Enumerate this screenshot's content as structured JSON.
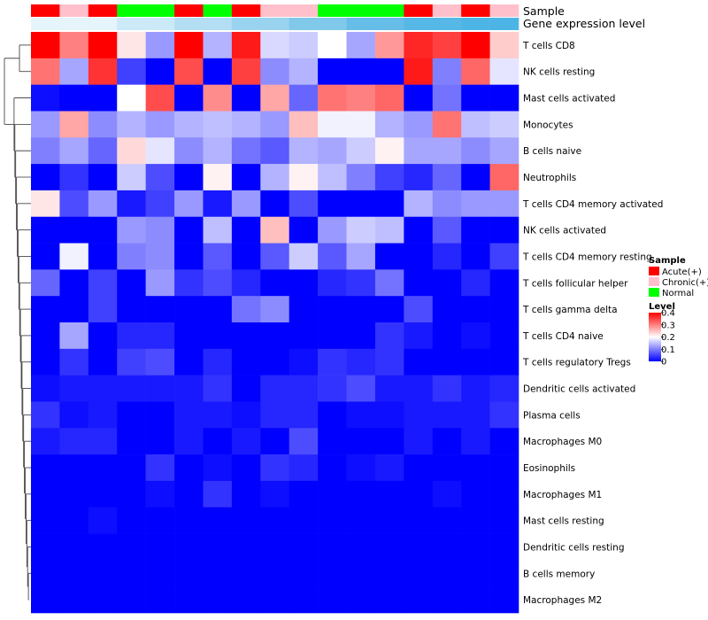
{
  "chart_data": {
    "type": "heatmap",
    "title": "",
    "annotation_tracks": [
      "Sample",
      "Gene expression level"
    ],
    "samples": [
      "Acute(+)",
      "Chronic(+)",
      "Acute(+)",
      "Normal",
      "Normal",
      "Acute(+)",
      "Normal",
      "Acute(+)",
      "Chronic(+)",
      "Chronic(+)",
      "Normal",
      "Normal",
      "Normal",
      "Acute(+)",
      "Chronic(+)",
      "Acute(+)",
      "Chronic(+)"
    ],
    "rows": [
      "T cells CD8",
      "NK cells resting",
      "Mast cells activated",
      "Monocytes",
      "B cells naive",
      "Neutrophils",
      "T cells CD4 memory activated",
      "NK cells activated",
      "T cells CD4 memory resting",
      "T cells follicular helper",
      "T cells gamma delta",
      "T cells CD4 naive",
      "T cells regulatory  Tregs",
      "Dendritic cells activated",
      "Plasma cells",
      "Macrophages M0",
      "Eosinophils",
      "Macrophages M1",
      "Mast cells resting",
      "Dendritic cells resting",
      "B cells memory",
      "Macrophages M2"
    ],
    "values": [
      [
        0.4,
        0.3,
        0.4,
        0.22,
        0.12,
        0.4,
        0.14,
        0.38,
        0.17,
        0.16,
        0.2,
        0.13,
        0.28,
        0.37,
        0.35,
        0.4,
        0.24
      ],
      [
        0.31,
        0.13,
        0.36,
        0.05,
        0.0,
        0.34,
        0.0,
        0.35,
        0.11,
        0.14,
        0.0,
        0.0,
        0.0,
        0.38,
        0.1,
        0.32,
        0.18
      ],
      [
        0.01,
        0.0,
        0.0,
        0.2,
        0.34,
        0.0,
        0.29,
        0.0,
        0.27,
        0.08,
        0.31,
        0.3,
        0.32,
        0.0,
        0.09,
        0.0,
        0.0
      ],
      [
        0.12,
        0.27,
        0.11,
        0.14,
        0.12,
        0.14,
        0.15,
        0.14,
        0.12,
        0.25,
        0.19,
        0.19,
        0.14,
        0.12,
        0.31,
        0.15,
        0.16
      ],
      [
        0.1,
        0.13,
        0.08,
        0.23,
        0.18,
        0.11,
        0.14,
        0.09,
        0.07,
        0.14,
        0.13,
        0.16,
        0.21,
        0.13,
        0.13,
        0.11,
        0.13
      ],
      [
        0.0,
        0.04,
        0.0,
        0.16,
        0.06,
        0.0,
        0.21,
        0.0,
        0.14,
        0.21,
        0.15,
        0.1,
        0.05,
        0.03,
        0.08,
        0.0,
        0.32
      ],
      [
        0.22,
        0.06,
        0.12,
        0.02,
        0.05,
        0.12,
        0.02,
        0.12,
        0.0,
        0.06,
        0.0,
        0.0,
        0.0,
        0.14,
        0.11,
        0.12,
        0.12
      ],
      [
        0.0,
        0.0,
        0.0,
        0.12,
        0.11,
        0.0,
        0.15,
        0.0,
        0.25,
        0.0,
        0.12,
        0.16,
        0.15,
        0.0,
        0.07,
        0.0,
        0.0
      ],
      [
        0.0,
        0.19,
        0.0,
        0.1,
        0.11,
        0.0,
        0.07,
        0.0,
        0.07,
        0.16,
        0.07,
        0.13,
        0.0,
        0.0,
        0.03,
        0.0,
        0.05
      ],
      [
        0.08,
        0.0,
        0.05,
        0.0,
        0.12,
        0.04,
        0.06,
        0.03,
        0.0,
        0.0,
        0.03,
        0.04,
        0.09,
        0.0,
        0.0,
        0.03,
        0.0
      ],
      [
        0.0,
        0.0,
        0.05,
        0.0,
        0.0,
        0.0,
        0.0,
        0.09,
        0.11,
        0.0,
        0.0,
        0.0,
        0.0,
        0.06,
        0.0,
        0.0,
        0.0
      ],
      [
        0.0,
        0.13,
        0.0,
        0.03,
        0.03,
        0.0,
        0.0,
        0.0,
        0.0,
        0.0,
        0.0,
        0.0,
        0.04,
        0.02,
        0.0,
        0.01,
        0.0
      ],
      [
        0.0,
        0.04,
        0.0,
        0.05,
        0.06,
        0.0,
        0.03,
        0.0,
        0.0,
        0.01,
        0.04,
        0.03,
        0.04,
        0.0,
        0.0,
        0.0,
        0.0
      ],
      [
        0.01,
        0.02,
        0.02,
        0.02,
        0.02,
        0.02,
        0.04,
        0.0,
        0.03,
        0.03,
        0.04,
        0.06,
        0.02,
        0.02,
        0.04,
        0.02,
        0.03
      ],
      [
        0.04,
        0.01,
        0.02,
        0.0,
        0.0,
        0.02,
        0.02,
        0.01,
        0.03,
        0.03,
        0.0,
        0.01,
        0.01,
        0.02,
        0.02,
        0.02,
        0.04
      ],
      [
        0.02,
        0.03,
        0.03,
        0.0,
        0.0,
        0.02,
        0.0,
        0.02,
        0.0,
        0.06,
        0.0,
        0.0,
        0.0,
        0.02,
        0.0,
        0.02,
        0.0
      ],
      [
        0.0,
        0.0,
        0.0,
        0.0,
        0.04,
        0.0,
        0.01,
        0.0,
        0.04,
        0.03,
        0.0,
        0.01,
        0.02,
        0.0,
        0.0,
        0.0,
        0.0
      ],
      [
        0.0,
        0.0,
        0.0,
        0.0,
        0.01,
        0.0,
        0.04,
        0.0,
        0.01,
        0.0,
        0.0,
        0.0,
        0.0,
        0.0,
        0.01,
        0.0,
        0.0
      ],
      [
        0.0,
        0.0,
        0.01,
        0.0,
        0.0,
        0.0,
        0.0,
        0.0,
        0.0,
        0.0,
        0.0,
        0.0,
        0.0,
        0.0,
        0.0,
        0.0,
        0.0
      ],
      [
        0.0,
        0.0,
        0.0,
        0.0,
        0.0,
        0.0,
        0.0,
        0.0,
        0.0,
        0.0,
        0.0,
        0.0,
        0.0,
        0.0,
        0.0,
        0.0,
        0.0
      ],
      [
        0.0,
        0.0,
        0.0,
        0.0,
        0.0,
        0.0,
        0.0,
        0.0,
        0.0,
        0.0,
        0.0,
        0.0,
        0.0,
        0.0,
        0.0,
        0.0,
        0.0
      ],
      [
        0.0,
        0.0,
        0.0,
        0.0,
        0.0,
        0.0,
        0.0,
        0.0,
        0.0,
        0.0,
        0.0,
        0.0,
        0.0,
        0.0,
        0.0,
        0.0,
        0.0
      ]
    ],
    "color_scale": {
      "min": 0,
      "mid": 0.2,
      "max": 0.4,
      "low_color": "#0000ff",
      "mid_color": "#ffffff",
      "high_color": "#ff0000"
    },
    "gene_expression_level_colors": [
      "#e6f4fb",
      "#cce9f7",
      "#b3def3",
      "#99d3ef",
      "#80c9eb",
      "#66bee8",
      "#55b8e6",
      "#4db5e6"
    ],
    "legend": {
      "sample_title": "Sample",
      "sample_entries": [
        {
          "label": "Acute(+)",
          "color": "#ff0000"
        },
        {
          "label": "Chronic(+)",
          "color": "#ffc0cb"
        },
        {
          "label": "Normal",
          "color": "#00ff00"
        }
      ],
      "level_title": "Level",
      "level_ticks": [
        "0.4",
        "0.3",
        "0.2",
        "0.1",
        "0"
      ],
      "level_tick_values": [
        0.4,
        0.3,
        0.2,
        0.1,
        0
      ]
    }
  }
}
